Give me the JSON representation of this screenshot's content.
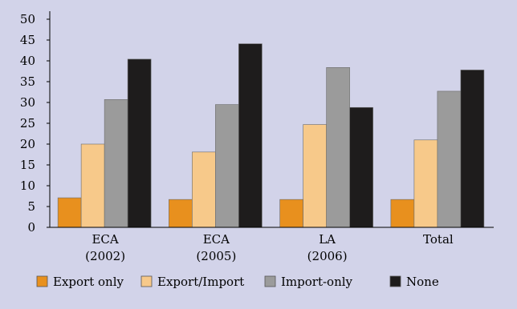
{
  "chart_data": {
    "type": "bar",
    "categories": [
      [
        "ECA",
        "(2002)"
      ],
      [
        "ECA",
        "(2005)"
      ],
      [
        "LA",
        "(2006)"
      ],
      [
        "Total"
      ]
    ],
    "series": [
      {
        "name": "Export only",
        "values": [
          7.1,
          6.7,
          6.7,
          6.7
        ],
        "color": "#e8901e"
      },
      {
        "name": "Export/Import",
        "values": [
          20,
          18.1,
          24.7,
          21
        ],
        "color": "#f7c98a"
      },
      {
        "name": "Import-only",
        "values": [
          30.7,
          29.5,
          38.4,
          32.7
        ],
        "color": "#9b9b9b"
      },
      {
        "name": "None",
        "values": [
          40.4,
          44.1,
          28.8,
          37.8
        ],
        "color": "#1e1c1c"
      }
    ],
    "ylim": [
      0,
      50
    ],
    "yticks": [
      0,
      5,
      10,
      15,
      20,
      25,
      30,
      35,
      40,
      45,
      50
    ],
    "grid": false,
    "legend_position": "bottom",
    "title": "",
    "xlabel": "",
    "ylabel": ""
  }
}
